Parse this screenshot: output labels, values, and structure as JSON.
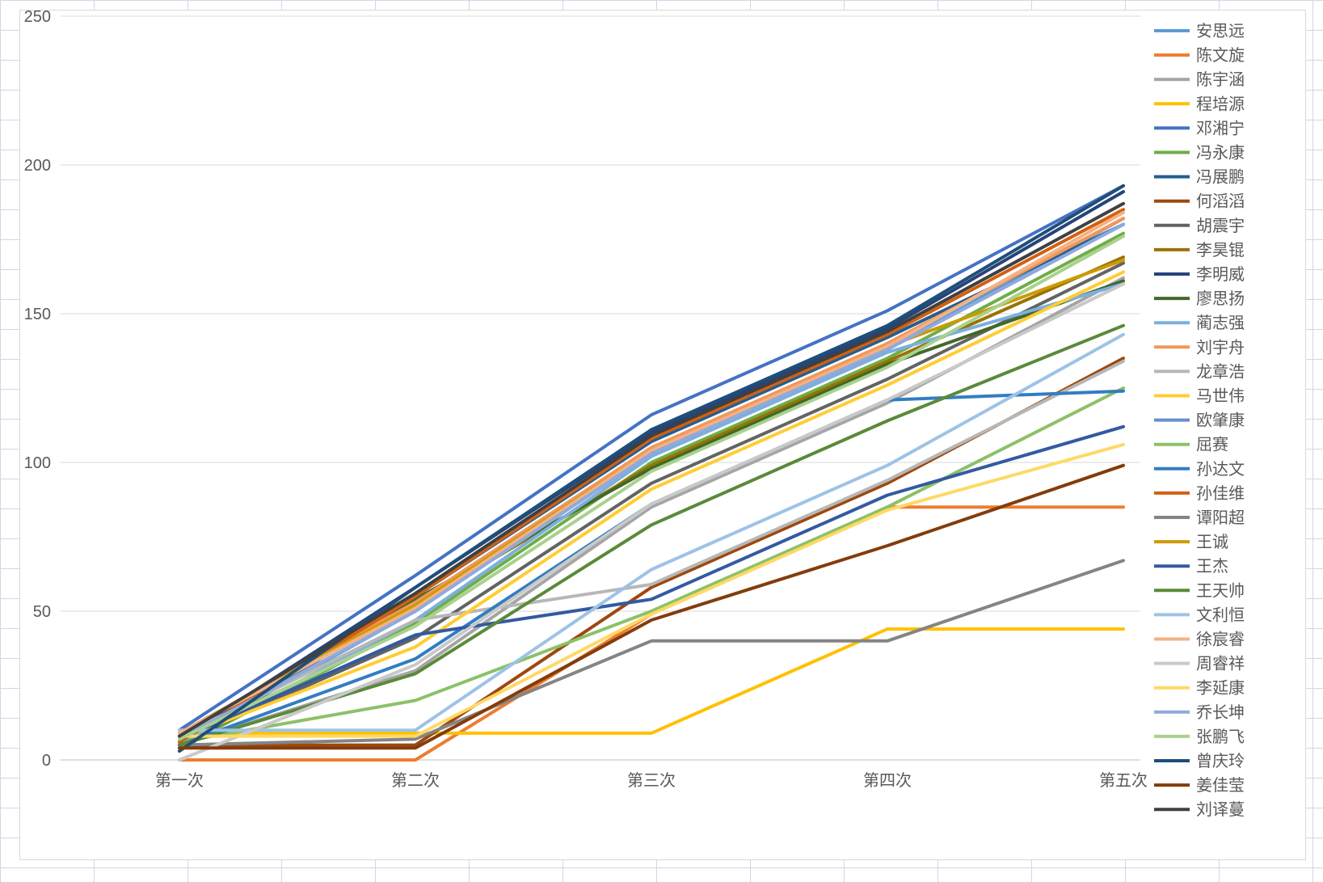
{
  "chart_data": {
    "type": "line",
    "title": "",
    "xlabel": "",
    "ylabel": "",
    "categories": [
      "第一次",
      "第二次",
      "第三次",
      "第四次",
      "第五次"
    ],
    "ylim": [
      0,
      250
    ],
    "yticks": [
      0,
      50,
      100,
      150,
      200,
      250
    ],
    "grid": true,
    "legend_position": "right",
    "series": [
      {
        "name": "安思远",
        "color": "#5b9bd5",
        "values": [
          6,
          50,
          103,
          138,
          182
        ]
      },
      {
        "name": "陈文旋",
        "color": "#ed7d31",
        "values": [
          0,
          0,
          49,
          85,
          85
        ]
      },
      {
        "name": "陈宇涵",
        "color": "#a5a5a5",
        "values": [
          5,
          30,
          85,
          120,
          162
        ]
      },
      {
        "name": "程培源",
        "color": "#ffc000",
        "values": [
          9,
          9,
          9,
          44,
          44
        ]
      },
      {
        "name": "邓湘宁",
        "color": "#4472c4",
        "values": [
          10,
          62,
          116,
          151,
          193
        ]
      },
      {
        "name": "冯永康",
        "color": "#70ad47",
        "values": [
          4,
          46,
          100,
          135,
          177
        ]
      },
      {
        "name": "冯展鹏",
        "color": "#255e91",
        "values": [
          3,
          55,
          107,
          142,
          180
        ]
      },
      {
        "name": "何滔滔",
        "color": "#9e480e",
        "values": [
          5,
          5,
          58,
          93,
          135
        ]
      },
      {
        "name": "胡震宇",
        "color": "#636363",
        "values": [
          6,
          41,
          93,
          128,
          167
        ]
      },
      {
        "name": "李昊锟",
        "color": "#997300",
        "values": [
          8,
          52,
          99,
          134,
          169
        ]
      },
      {
        "name": "李明威",
        "color": "#264478",
        "values": [
          7,
          58,
          110,
          145,
          191
        ]
      },
      {
        "name": "廖思扬",
        "color": "#43682b",
        "values": [
          6,
          54,
          98,
          133,
          161
        ]
      },
      {
        "name": "蔺志强",
        "color": "#7cafdd",
        "values": [
          5,
          47,
          102,
          137,
          160
        ]
      },
      {
        "name": "刘宇舟",
        "color": "#f1975a",
        "values": [
          9,
          53,
          105,
          140,
          182
        ]
      },
      {
        "name": "龙章浩",
        "color": "#b7b7b7",
        "values": [
          8,
          47,
          59,
          94,
          134
        ]
      },
      {
        "name": "马世伟",
        "color": "#ffcd33",
        "values": [
          7,
          38,
          91,
          126,
          164
        ]
      },
      {
        "name": "欧肇康",
        "color": "#698ed0",
        "values": [
          7,
          50,
          103,
          138,
          180
        ]
      },
      {
        "name": "屈赛",
        "color": "#8cc168",
        "values": [
          6,
          20,
          50,
          85,
          125
        ]
      },
      {
        "name": "孙达文",
        "color": "#327dc2",
        "values": [
          5,
          34,
          86,
          121,
          124
        ]
      },
      {
        "name": "孙佳维",
        "color": "#d26012",
        "values": [
          6,
          55,
          108,
          143,
          185
        ]
      },
      {
        "name": "谭阳超",
        "color": "#848484",
        "values": [
          5,
          7,
          40,
          40,
          67
        ]
      },
      {
        "name": "王诚",
        "color": "#cc9a00",
        "values": [
          9,
          52,
          104,
          139,
          168
        ]
      },
      {
        "name": "王杰",
        "color": "#335aa1",
        "values": [
          7,
          42,
          54,
          89,
          112
        ]
      },
      {
        "name": "王天帅",
        "color": "#5a8a39",
        "values": [
          5,
          29,
          79,
          114,
          146
        ]
      },
      {
        "name": "文利恒",
        "color": "#9dc3e6",
        "values": [
          10,
          10,
          64,
          99,
          143
        ]
      },
      {
        "name": "徐宸睿",
        "color": "#f4b183",
        "values": [
          9,
          51,
          104,
          139,
          184
        ]
      },
      {
        "name": "周睿祥",
        "color": "#c9c9c9",
        "values": [
          0,
          32,
          86,
          121,
          160
        ]
      },
      {
        "name": "李延康",
        "color": "#ffd966",
        "values": [
          8,
          8,
          49,
          84,
          106
        ]
      },
      {
        "name": "乔长坤",
        "color": "#8faadc",
        "values": [
          7,
          50,
          103,
          138,
          180
        ]
      },
      {
        "name": "张鹏飞",
        "color": "#a9d18e",
        "values": [
          7,
          45,
          97,
          132,
          176
        ]
      },
      {
        "name": "曾庆玲",
        "color": "#1f4e79",
        "values": [
          3,
          58,
          111,
          146,
          193
        ]
      },
      {
        "name": "姜佳莹",
        "color": "#843c0c",
        "values": [
          4,
          4,
          47,
          72,
          99
        ]
      },
      {
        "name": "刘译蔓",
        "color": "#404040",
        "values": [
          8,
          56,
          109,
          144,
          187
        ]
      }
    ]
  }
}
